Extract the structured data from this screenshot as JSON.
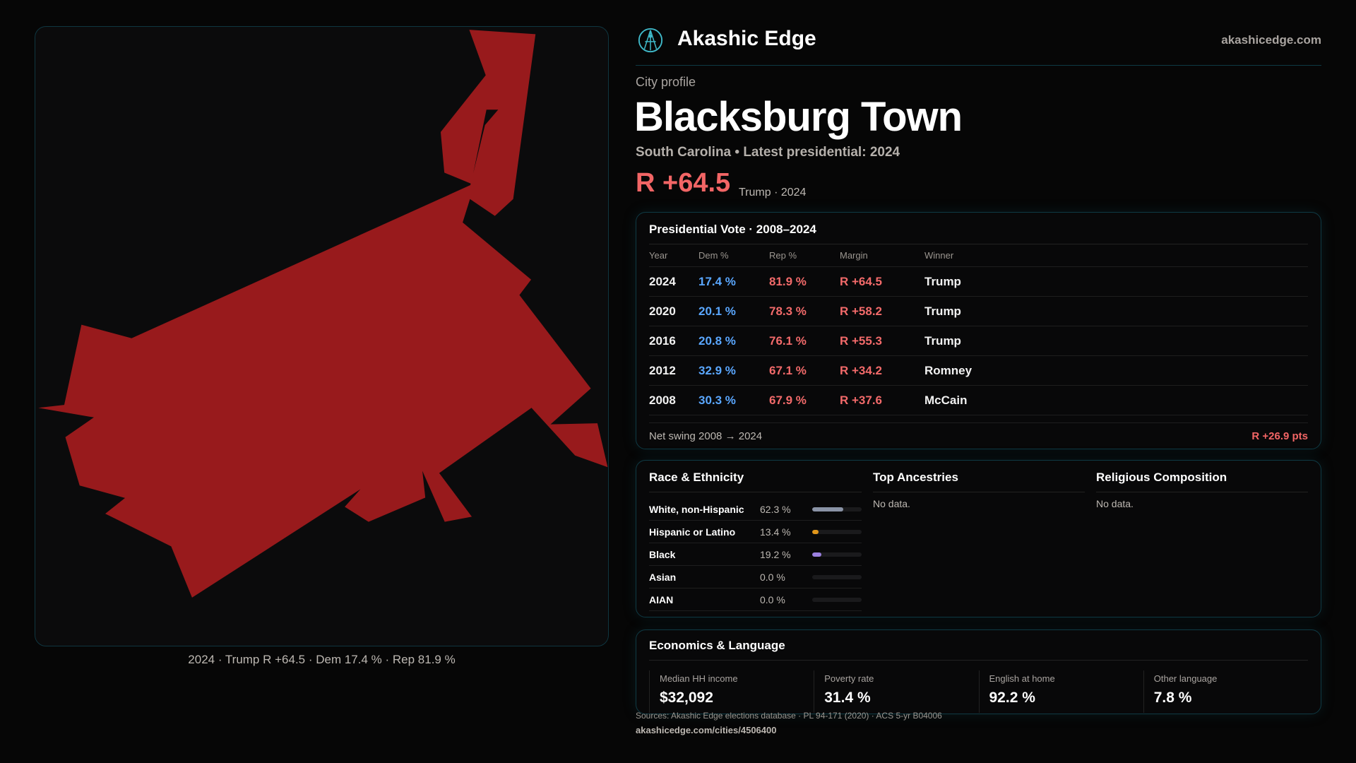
{
  "brand": {
    "name": "Akashic Edge",
    "site": "akashicedge.com"
  },
  "profile": {
    "kicker": "City profile",
    "title": "Blacksburg Town",
    "subtitle": "South Carolina • Latest presidential: 2024",
    "margin": "R +64.5",
    "margin_note": "Trump · 2024"
  },
  "map": {
    "caption": "2024 · Trump R +64.5 · Dem 17.4 % · Rep 81.9 %",
    "fill": "#981a1c"
  },
  "vote": {
    "title": "Presidential Vote · 2008–2024",
    "headers": [
      "Year",
      "Dem %",
      "Rep %",
      "Margin",
      "Winner"
    ],
    "rows": [
      {
        "year": "2024",
        "dem": "17.4 %",
        "rep": "81.9 %",
        "margin": "R +64.5",
        "winner": "Trump"
      },
      {
        "year": "2020",
        "dem": "20.1 %",
        "rep": "78.3 %",
        "margin": "R +58.2",
        "winner": "Trump"
      },
      {
        "year": "2016",
        "dem": "20.8 %",
        "rep": "76.1 %",
        "margin": "R +55.3",
        "winner": "Trump"
      },
      {
        "year": "2012",
        "dem": "32.9 %",
        "rep": "67.1 %",
        "margin": "R +34.2",
        "winner": "Romney"
      },
      {
        "year": "2008",
        "dem": "30.3 %",
        "rep": "67.9 %",
        "margin": "R +37.6",
        "winner": "McCain"
      }
    ],
    "swing_label": "Net swing 2008 → 2024",
    "swing_value": "R +26.9 pts"
  },
  "race": {
    "title": "Race & Ethnicity",
    "rows": [
      {
        "label": "White, non-Hispanic",
        "pct": "62.3 %",
        "value": 62.3,
        "color": "#8a93a6"
      },
      {
        "label": "Hispanic or Latino",
        "pct": "13.4 %",
        "value": 13.4,
        "color": "#e0961a"
      },
      {
        "label": "Black",
        "pct": "19.2 %",
        "value": 19.2,
        "color": "#9b80e0"
      },
      {
        "label": "Asian",
        "pct": "0.0 %",
        "value": 0,
        "color": "#8a93a6"
      },
      {
        "label": "AIAN",
        "pct": "0.0 %",
        "value": 0,
        "color": "#8a93a6"
      }
    ]
  },
  "ancestries": {
    "title": "Top Ancestries",
    "empty": "No data."
  },
  "religion": {
    "title": "Religious Composition",
    "empty": "No data."
  },
  "econ": {
    "title": "Economics & Language",
    "stats": [
      {
        "label": "Median HH income",
        "value": "$32,092"
      },
      {
        "label": "Poverty rate",
        "value": "31.4 %"
      },
      {
        "label": "English at home",
        "value": "92.2 %"
      },
      {
        "label": "Other language",
        "value": "7.8 %"
      }
    ]
  },
  "footer": {
    "sources": "Sources: Akashic Edge elections database · PL 94-171 (2020) · ACS 5-yr B04006",
    "url": "akashicedge.com/cities/4506400"
  }
}
